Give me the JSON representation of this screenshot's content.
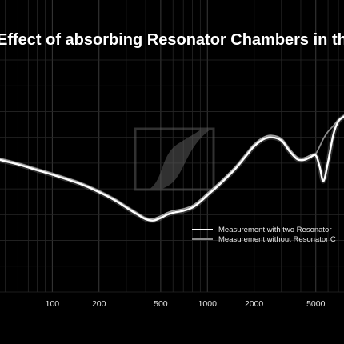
{
  "colors": {
    "background": "#000000",
    "grid": "#3a3a3a",
    "grid_minor": "#262626",
    "series_primary": "#ffffff",
    "series_secondary": "#8a8a8a",
    "watermark": "#5a5a5a",
    "text": "#e0e0e0"
  },
  "watermark": {
    "icon": "sennheiser-logo-icon"
  },
  "chart_data": {
    "type": "line",
    "title": "Effect of absorbing Resonator Chambers in the",
    "xlabel": "",
    "ylabel": "",
    "xscale": "log",
    "xlim": [
      46,
      7600
    ],
    "ylim": [
      -18,
      18
    ],
    "x_ticks": [
      100,
      200,
      500,
      1000,
      2000,
      5000
    ],
    "x_tick_labels": [
      "100",
      "200",
      "500",
      "1000",
      "2000",
      "5000"
    ],
    "grid": true,
    "legend_position": "lower-right",
    "series": [
      {
        "name": "Measurement with two Resonator",
        "color": "#ffffff",
        "x": [
          46,
          60,
          80,
          100,
          150,
          200,
          250,
          300,
          350,
          400,
          450,
          500,
          550,
          600,
          700,
          800,
          900,
          1000,
          1200,
          1500,
          1800,
          2000,
          2300,
          2600,
          3000,
          3400,
          3800,
          4200,
          4600,
          5000,
          5300,
          5600,
          6000,
          6500,
          7000,
          7600
        ],
        "y": [
          2.5,
          1.8,
          0.9,
          0.2,
          -1.2,
          -2.5,
          -3.7,
          -4.9,
          -5.9,
          -6.7,
          -6.9,
          -6.5,
          -6.0,
          -5.7,
          -5.4,
          -4.9,
          -4.0,
          -3.0,
          -1.3,
          1.0,
          3.3,
          4.6,
          5.7,
          6.0,
          5.5,
          3.8,
          2.6,
          2.5,
          2.9,
          3.2,
          1.4,
          -0.8,
          2.2,
          6.5,
          8.5,
          9.2
        ]
      },
      {
        "name": "Measurement without Resonator C",
        "color": "#8a8a8a",
        "x": [
          46,
          60,
          80,
          100,
          150,
          200,
          250,
          300,
          350,
          400,
          450,
          500,
          550,
          600,
          700,
          800,
          900,
          1000,
          1200,
          1500,
          1800,
          2000,
          2300,
          2600,
          3000,
          3400,
          3800,
          4200,
          4600,
          5000,
          5300,
          5600,
          6000,
          6500,
          7000,
          7600
        ],
        "y": [
          2.7,
          2.0,
          1.1,
          0.4,
          -1.0,
          -2.3,
          -3.5,
          -4.7,
          -5.7,
          -6.5,
          -6.6,
          -6.2,
          -5.7,
          -5.4,
          -5.1,
          -4.6,
          -3.7,
          -2.7,
          -1.0,
          1.3,
          3.6,
          4.9,
          6.0,
          6.3,
          5.8,
          4.1,
          2.9,
          2.8,
          3.2,
          3.5,
          4.6,
          5.8,
          6.9,
          7.8,
          8.7,
          9.4
        ]
      }
    ]
  }
}
